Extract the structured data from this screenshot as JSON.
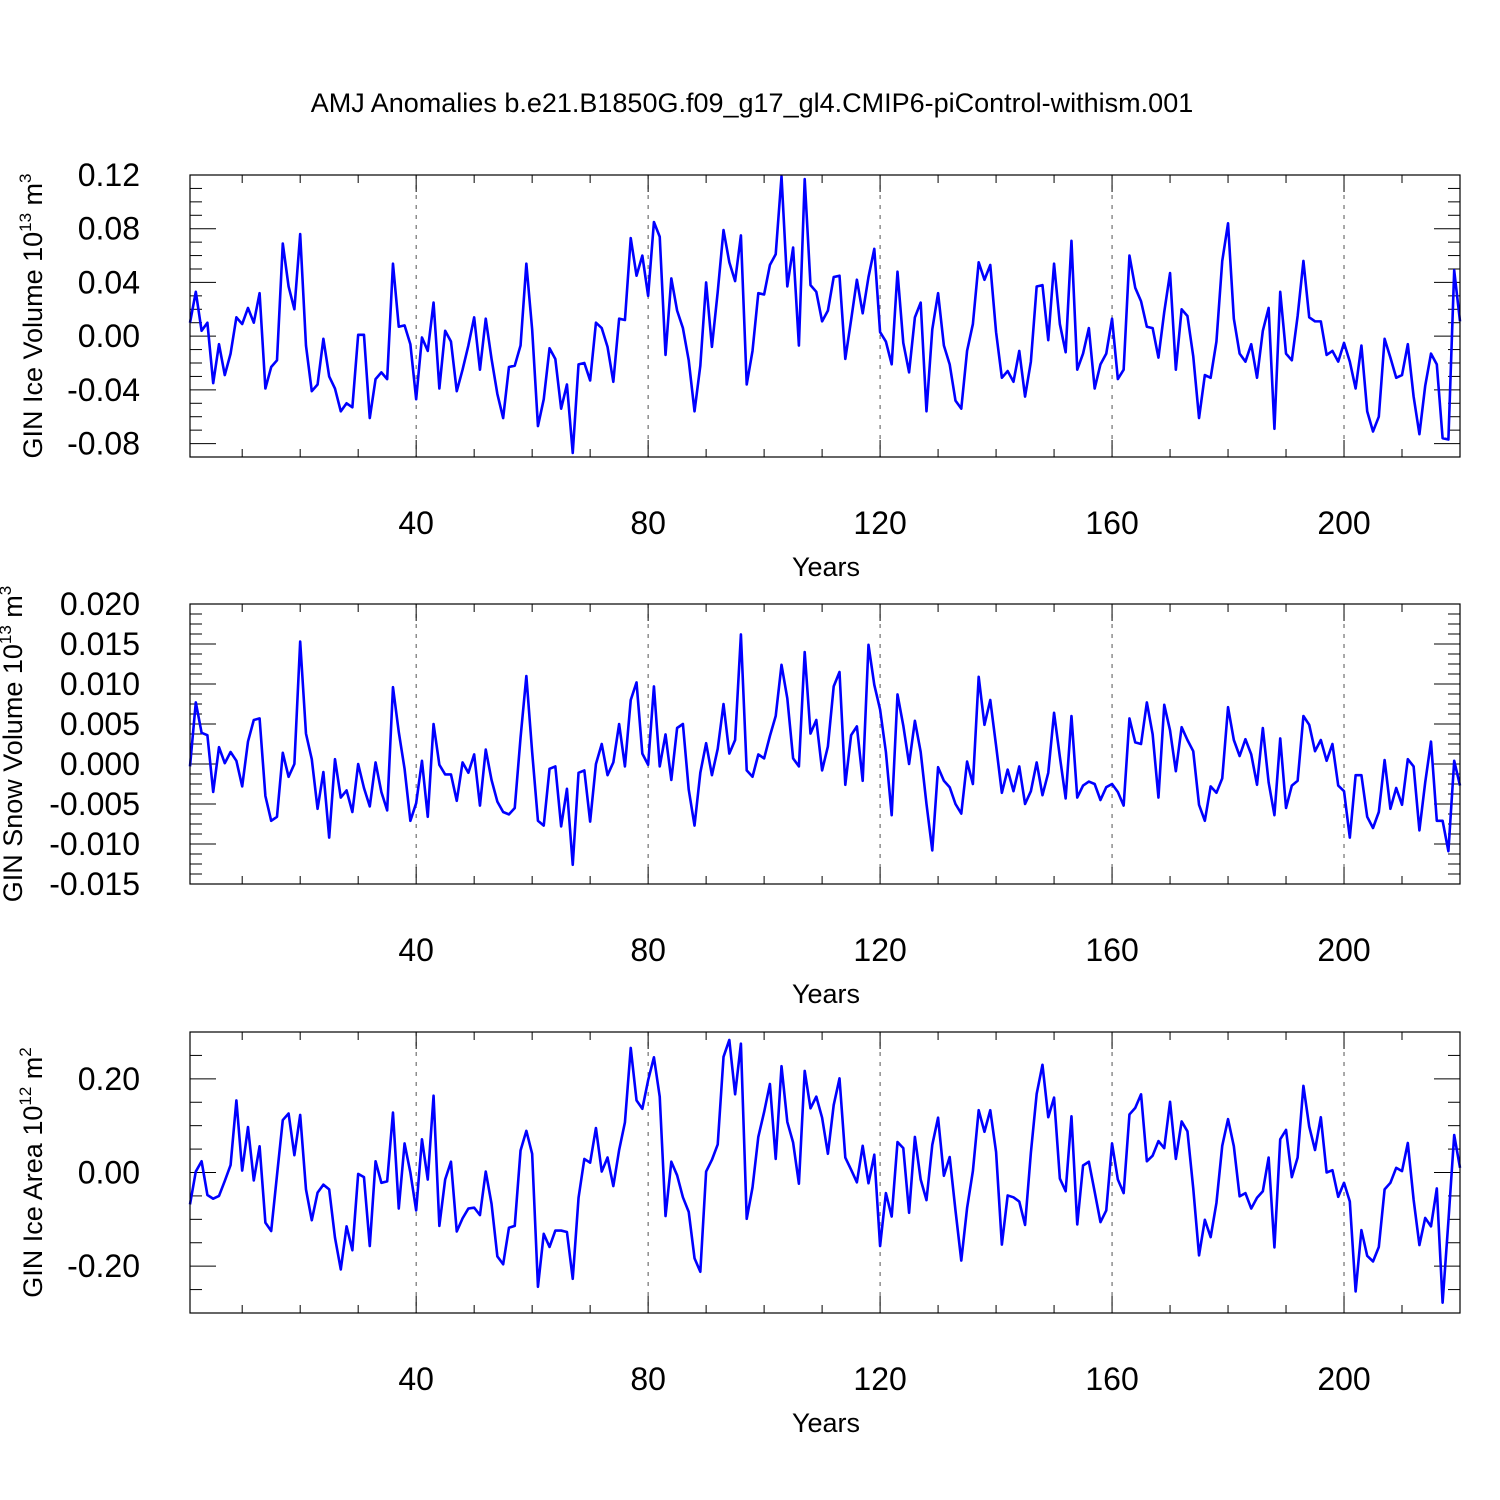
{
  "title": "AMJ Anomalies b.e21.B1850G.f09_g17_gl4.CMIP6-piControl-withism.001",
  "line_color": "#0000ff",
  "chart_data": [
    {
      "type": "line",
      "ylabel": "GIN Ice Volume 10",
      "ylabel_exp": "13",
      "ylabel_unit": " m",
      "ylabel_unit_exp": "3",
      "xlabel": "Years",
      "xlim": [
        1,
        220
      ],
      "ylim": [
        -0.09,
        0.12
      ],
      "yticks": [
        -0.08,
        -0.04,
        0.0,
        0.04,
        0.08,
        0.12
      ],
      "ytick_labels": [
        "-0.08",
        "-0.04",
        "0.00",
        "0.04",
        "0.08",
        "0.12"
      ],
      "xticks": [
        40,
        80,
        120,
        160,
        200
      ],
      "xtick_labels": [
        "40",
        "80",
        "120",
        "160",
        "200"
      ],
      "grid": "vertical dashed at x ticks",
      "series": [
        {
          "x_start": 1,
          "values": [
            0.01,
            0.033,
            0.004,
            0.01,
            -0.035,
            -0.006,
            -0.029,
            -0.013,
            0.014,
            0.009,
            0.021,
            0.01,
            0.032,
            -0.039,
            -0.023,
            -0.018,
            0.069,
            0.037,
            0.02,
            0.076,
            -0.007,
            -0.041,
            -0.036,
            -0.002,
            -0.03,
            -0.039,
            -0.056,
            -0.05,
            -0.053,
            0.001,
            0.001,
            -0.061,
            -0.032,
            -0.027,
            -0.032,
            0.054,
            0.007,
            0.008,
            -0.006,
            -0.047,
            -0.001,
            -0.011,
            0.025,
            -0.039,
            0.004,
            -0.004,
            -0.041,
            -0.025,
            -0.007,
            0.014,
            -0.025,
            0.013,
            -0.017,
            -0.043,
            -0.061,
            -0.023,
            -0.022,
            -0.007,
            0.054,
            0.005,
            -0.067,
            -0.047,
            -0.009,
            -0.017,
            -0.054,
            -0.036,
            -0.087,
            -0.021,
            -0.02,
            -0.033,
            0.01,
            0.006,
            -0.008,
            -0.034,
            0.013,
            0.012,
            0.073,
            0.045,
            0.06,
            0.03,
            0.085,
            0.074,
            -0.014,
            0.043,
            0.019,
            0.006,
            -0.018,
            -0.056,
            -0.022,
            0.04,
            -0.008,
            0.033,
            0.079,
            0.055,
            0.041,
            0.075,
            -0.036,
            -0.011,
            0.032,
            0.031,
            0.053,
            0.061,
            0.119,
            0.037,
            0.066,
            -0.007,
            0.117,
            0.038,
            0.033,
            0.011,
            0.019,
            0.044,
            0.045,
            -0.017,
            0.012,
            0.042,
            0.017,
            0.044,
            0.065,
            0.003,
            -0.004,
            -0.021,
            0.048,
            -0.005,
            -0.027,
            0.014,
            0.025,
            -0.056,
            0.005,
            0.032,
            -0.007,
            -0.021,
            -0.048,
            -0.054,
            -0.011,
            0.009,
            0.055,
            0.042,
            0.053,
            0.003,
            -0.031,
            -0.026,
            -0.034,
            -0.011,
            -0.045,
            -0.019,
            0.037,
            0.038,
            -0.003,
            0.054,
            0.009,
            -0.012,
            0.071,
            -0.025,
            -0.013,
            0.006,
            -0.039,
            -0.021,
            -0.013,
            0.013,
            -0.032,
            -0.025,
            0.06,
            0.036,
            0.026,
            0.007,
            0.006,
            -0.016,
            0.018,
            0.047,
            -0.025,
            0.02,
            0.015,
            -0.015,
            -0.061,
            -0.029,
            -0.031,
            -0.004,
            0.056,
            0.084,
            0.013,
            -0.013,
            -0.019,
            -0.006,
            -0.031,
            0.004,
            0.021,
            -0.069,
            0.033,
            -0.013,
            -0.018,
            0.015,
            0.056,
            0.014,
            0.011,
            0.011,
            -0.014,
            -0.011,
            -0.019,
            -0.005,
            -0.019,
            -0.039,
            -0.007,
            -0.056,
            -0.071,
            -0.06,
            -0.002,
            -0.016,
            -0.031,
            -0.029,
            -0.006,
            -0.045,
            -0.073,
            -0.037,
            -0.013,
            -0.021,
            -0.076,
            -0.077,
            0.049,
            0.011
          ]
        }
      ]
    },
    {
      "type": "line",
      "ylabel": "GIN Snow Volume 10",
      "ylabel_exp": "13",
      "ylabel_unit": " m",
      "ylabel_unit_exp": "3",
      "xlabel": "Years",
      "xlim": [
        1,
        220
      ],
      "ylim": [
        -0.015,
        0.02
      ],
      "yticks": [
        -0.015,
        -0.01,
        -0.005,
        0.0,
        0.005,
        0.01,
        0.015,
        0.02
      ],
      "ytick_labels": [
        "-0.015",
        "-0.010",
        "-0.005",
        "0.000",
        "0.005",
        "0.010",
        "0.015",
        "0.020"
      ],
      "xticks": [
        40,
        80,
        120,
        160,
        200
      ],
      "xtick_labels": [
        "40",
        "80",
        "120",
        "160",
        "200"
      ],
      "grid": "vertical dashed at x ticks",
      "series": [
        {
          "x_start": 1,
          "values": [
            -0.0003,
            0.0077,
            0.0039,
            0.0036,
            -0.0035,
            0.0021,
            0.0001,
            0.0015,
            0.0004,
            -0.0028,
            0.0028,
            0.0055,
            0.0057,
            -0.004,
            -0.0071,
            -0.0066,
            0.0014,
            -0.0016,
            0.0,
            0.0153,
            0.0038,
            0.0006,
            -0.0056,
            -0.001,
            -0.0092,
            0.0006,
            -0.0042,
            -0.0033,
            -0.006,
            0.0,
            -0.003,
            -0.0053,
            0.0002,
            -0.0035,
            -0.0058,
            0.0096,
            0.004,
            -0.0006,
            -0.0071,
            -0.0049,
            0.0004,
            -0.0066,
            0.005,
            -0.0001,
            -0.0013,
            -0.0013,
            -0.0046,
            0.0002,
            -0.0011,
            0.0012,
            -0.0052,
            0.0018,
            -0.002,
            -0.0047,
            -0.006,
            -0.0063,
            -0.0055,
            0.0033,
            0.011,
            0.0015,
            -0.0071,
            -0.0077,
            -0.0006,
            -0.0003,
            -0.0078,
            -0.0031,
            -0.0126,
            -0.0011,
            -0.0008,
            -0.0072,
            0.0,
            0.0025,
            -0.0014,
            0.0002,
            0.005,
            -0.0003,
            0.008,
            0.0102,
            0.0013,
            -0.0001,
            0.0097,
            -0.0003,
            0.0037,
            -0.002,
            0.0045,
            0.005,
            -0.0032,
            -0.0077,
            -0.0011,
            0.0026,
            -0.0014,
            0.0019,
            0.0075,
            0.0013,
            0.003,
            0.0162,
            -0.0008,
            -0.0016,
            0.0012,
            0.0007,
            0.0035,
            0.006,
            0.0124,
            0.0082,
            0.0007,
            -0.0003,
            0.014,
            0.0038,
            0.0055,
            -0.0008,
            0.0022,
            0.0097,
            0.0115,
            -0.0026,
            0.0036,
            0.0047,
            -0.0021,
            0.0149,
            0.0099,
            0.0068,
            0.0015,
            -0.0064,
            0.0087,
            0.0048,
            0.0,
            0.0054,
            0.0015,
            -0.005,
            -0.0108,
            -0.0004,
            -0.0021,
            -0.0029,
            -0.005,
            -0.0062,
            0.0003,
            -0.0025,
            0.0109,
            0.0049,
            0.008,
            0.0023,
            -0.0036,
            -0.0007,
            -0.0034,
            -0.0003,
            -0.005,
            -0.0034,
            0.0002,
            -0.0039,
            -0.0011,
            0.0064,
            0.0009,
            -0.0043,
            0.006,
            -0.0042,
            -0.0027,
            -0.0022,
            -0.0025,
            -0.0045,
            -0.0029,
            -0.0025,
            -0.0035,
            -0.0052,
            0.0057,
            0.0027,
            0.0025,
            0.0077,
            0.0037,
            -0.0042,
            0.0074,
            0.0042,
            -0.0009,
            0.0046,
            0.003,
            0.0016,
            -0.0051,
            -0.0071,
            -0.0028,
            -0.0036,
            -0.0018,
            0.0071,
            0.003,
            0.001,
            0.0031,
            0.0012,
            -0.0026,
            0.0045,
            -0.0023,
            -0.0064,
            0.0032,
            -0.0055,
            -0.0027,
            -0.0021,
            0.006,
            0.0049,
            0.0016,
            0.003,
            0.0004,
            0.0025,
            -0.0027,
            -0.0034,
            -0.0092,
            -0.0014,
            -0.0014,
            -0.0066,
            -0.008,
            -0.006,
            0.0005,
            -0.0056,
            -0.003,
            -0.0051,
            0.0006,
            -0.0003,
            -0.0083,
            -0.0023,
            0.0028,
            -0.0071,
            -0.0071,
            -0.0109,
            0.0004,
            -0.0027
          ]
        }
      ]
    },
    {
      "type": "line",
      "ylabel": "GIN Ice Area 10",
      "ylabel_exp": "12",
      "ylabel_unit": " m",
      "ylabel_unit_exp": "2",
      "xlabel": "Years",
      "xlim": [
        1,
        220
      ],
      "ylim": [
        -0.3,
        0.3
      ],
      "yticks": [
        -0.2,
        0.0,
        0.2
      ],
      "ytick_labels": [
        "-0.20",
        "0.00",
        "0.20"
      ],
      "xticks": [
        40,
        80,
        120,
        160,
        200
      ],
      "xtick_labels": [
        "40",
        "80",
        "120",
        "160",
        "200"
      ],
      "grid": "vertical dashed at x ticks",
      "series": [
        {
          "x_start": 1,
          "values": [
            -0.068,
            0.002,
            0.024,
            -0.048,
            -0.056,
            -0.05,
            -0.018,
            0.016,
            0.154,
            0.004,
            0.097,
            -0.017,
            0.056,
            -0.107,
            -0.125,
            -0.006,
            0.112,
            0.126,
            0.037,
            0.123,
            -0.036,
            -0.102,
            -0.043,
            -0.026,
            -0.036,
            -0.139,
            -0.207,
            -0.115,
            -0.166,
            -0.003,
            -0.01,
            -0.157,
            0.024,
            -0.022,
            -0.019,
            0.128,
            -0.077,
            0.062,
            0.0,
            -0.081,
            0.071,
            -0.015,
            0.164,
            -0.114,
            -0.015,
            0.023,
            -0.126,
            -0.098,
            -0.077,
            -0.075,
            -0.091,
            0.002,
            -0.067,
            -0.179,
            -0.196,
            -0.118,
            -0.114,
            0.047,
            0.089,
            0.04,
            -0.244,
            -0.131,
            -0.159,
            -0.124,
            -0.124,
            -0.127,
            -0.227,
            -0.054,
            0.029,
            0.021,
            0.095,
            0.002,
            0.032,
            -0.029,
            0.048,
            0.107,
            0.266,
            0.154,
            0.136,
            0.197,
            0.246,
            0.162,
            -0.093,
            0.023,
            -0.006,
            -0.053,
            -0.084,
            -0.183,
            -0.212,
            0.002,
            0.027,
            0.06,
            0.247,
            0.283,
            0.167,
            0.275,
            -0.099,
            -0.032,
            0.076,
            0.129,
            0.189,
            0.029,
            0.227,
            0.108,
            0.064,
            -0.024,
            0.217,
            0.137,
            0.162,
            0.117,
            0.04,
            0.144,
            0.201,
            0.032,
            0.006,
            -0.021,
            0.057,
            -0.023,
            0.038,
            -0.157,
            -0.044,
            -0.094,
            0.065,
            0.052,
            -0.086,
            0.076,
            -0.015,
            -0.059,
            0.059,
            0.117,
            -0.007,
            0.033,
            -0.081,
            -0.188,
            -0.076,
            0.003,
            0.133,
            0.087,
            0.133,
            0.044,
            -0.154,
            -0.049,
            -0.053,
            -0.062,
            -0.112,
            0.042,
            0.168,
            0.23,
            0.118,
            0.16,
            -0.013,
            -0.04,
            0.12,
            -0.111,
            0.015,
            0.023,
            -0.041,
            -0.106,
            -0.081,
            0.062,
            -0.015,
            -0.044,
            0.124,
            0.138,
            0.167,
            0.024,
            0.036,
            0.067,
            0.052,
            0.151,
            0.029,
            0.109,
            0.088,
            -0.034,
            -0.177,
            -0.101,
            -0.138,
            -0.065,
            0.057,
            0.114,
            0.056,
            -0.051,
            -0.044,
            -0.077,
            -0.054,
            -0.04,
            0.032,
            -0.16,
            0.071,
            0.091,
            -0.01,
            0.032,
            0.185,
            0.098,
            0.048,
            0.118,
            0.0,
            0.005,
            -0.052,
            -0.022,
            -0.062,
            -0.254,
            -0.123,
            -0.178,
            -0.19,
            -0.159,
            -0.036,
            -0.022,
            0.01,
            0.003,
            0.063,
            -0.058,
            -0.155,
            -0.097,
            -0.115,
            -0.034,
            -0.278,
            -0.104,
            0.08,
            0.01
          ]
        }
      ]
    }
  ]
}
